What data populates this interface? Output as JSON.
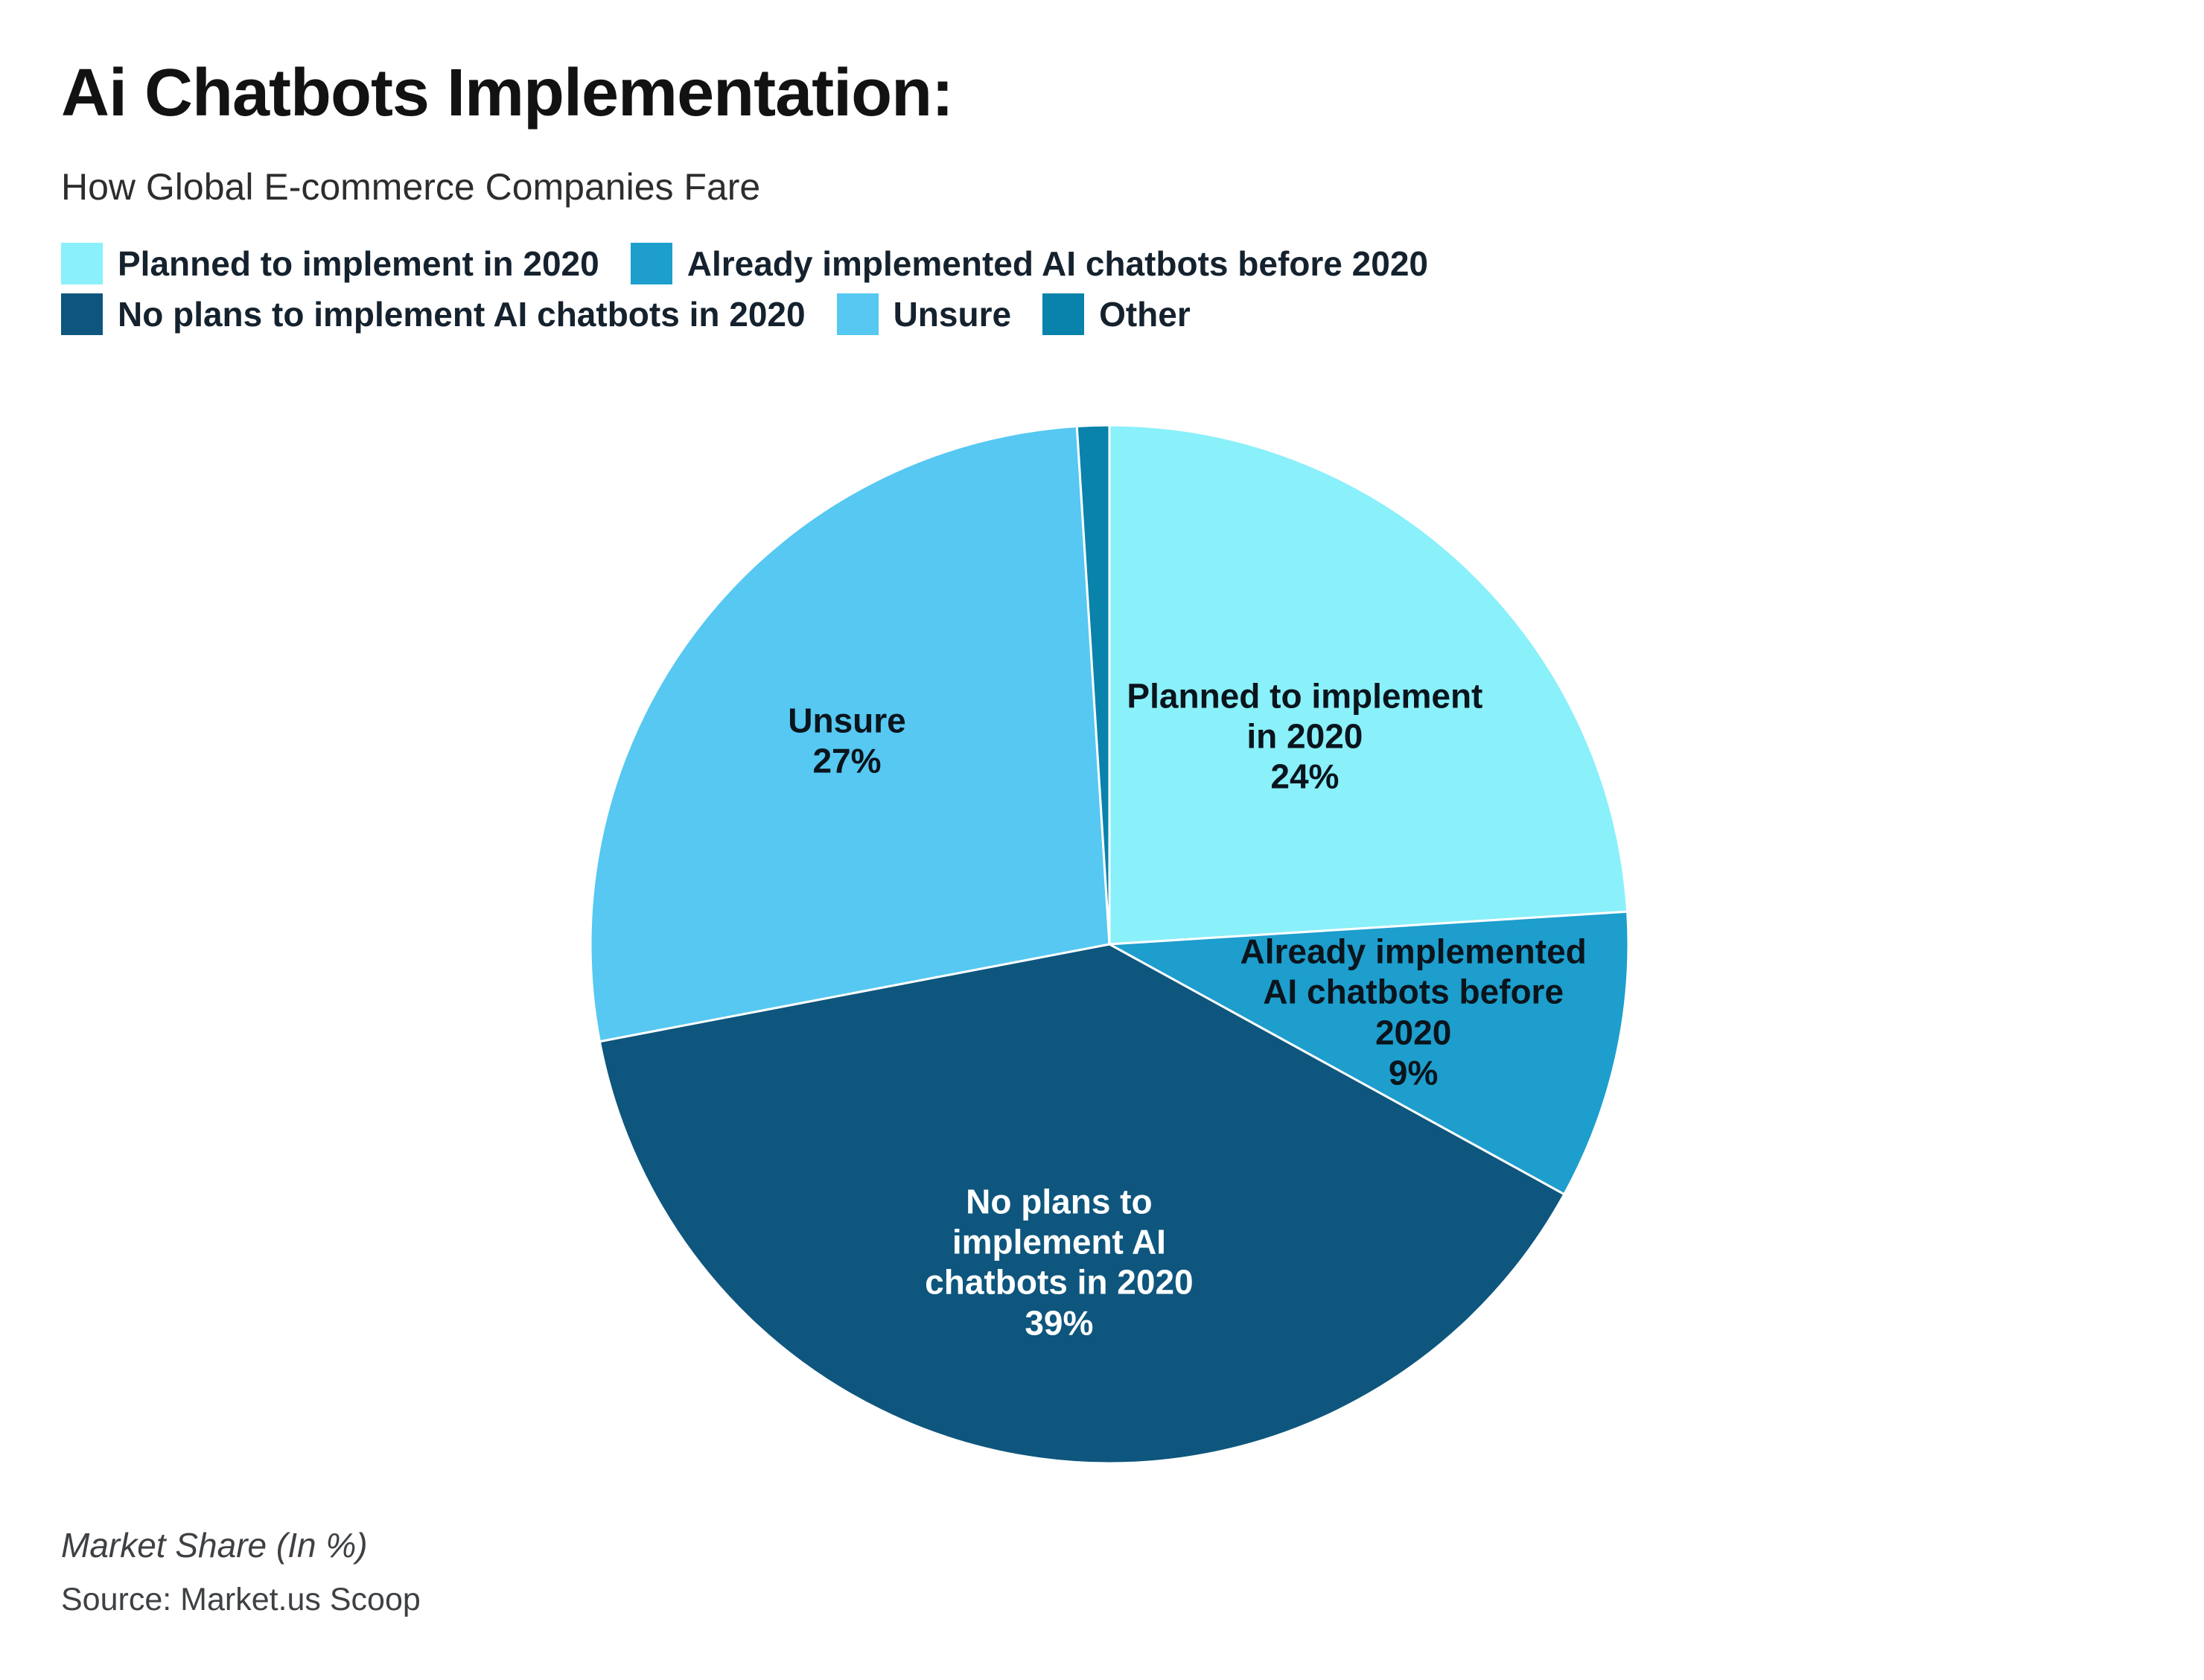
{
  "header": {
    "title": "Ai Chatbots Implementation:",
    "subtitle": "How Global E-commerce Companies Fare"
  },
  "chart_data": {
    "type": "pie",
    "title": "Ai Chatbots Implementation: How Global E-commerce Companies Fare",
    "unit": "percent",
    "start_angle_deg": 0,
    "direction": "clockwise",
    "legend_position": "top-left",
    "separator_color": "#ffffff",
    "slices": [
      {
        "label": "Planned to implement in 2020",
        "value": 24,
        "color": "#8AF0FA",
        "label_lines": [
          "Planned to implement",
          "in 2020",
          "24%"
        ],
        "label_color": "#0a141c"
      },
      {
        "label": "Already implemented AI chatbots before 2020",
        "value": 9,
        "color": "#1D9ECD",
        "label_lines": [
          "Already implemented",
          "AI chatbots before",
          "2020",
          "9%"
        ],
        "label_color": "#0a141c"
      },
      {
        "label": "No plans to implement AI chatbots in 2020",
        "value": 39,
        "color": "#0E567D",
        "label_lines": [
          "No plans to",
          "implement AI",
          "chatbots in 2020",
          "39%"
        ],
        "label_color": "#ffffff"
      },
      {
        "label": "Unsure",
        "value": 27,
        "color": "#56C8F1",
        "label_lines": [
          "Unsure",
          "27%"
        ],
        "label_color": "#0a141c"
      },
      {
        "label": "Other",
        "value": 1,
        "color": "#0983AB",
        "label_lines": [],
        "label_color": "#0a141c"
      }
    ]
  },
  "footer": {
    "note": "Market Share (In %)",
    "source": "Source: Market.us Scoop"
  }
}
